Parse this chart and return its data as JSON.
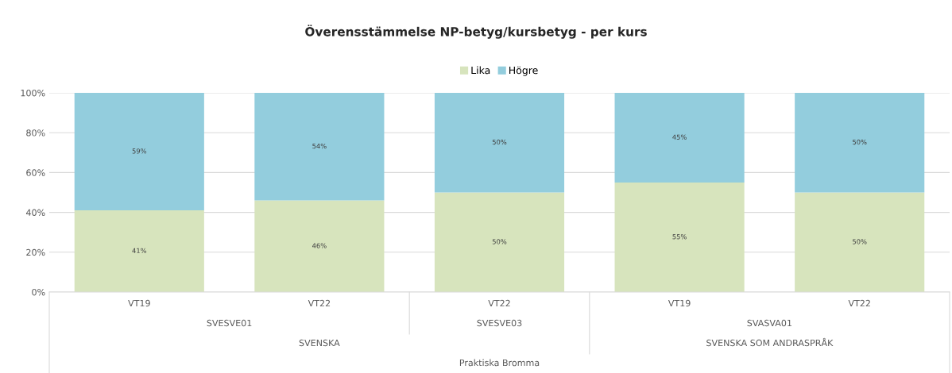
{
  "chart_data": {
    "type": "bar",
    "stacked": true,
    "title": "Överensstämmelse NP-betyg/kursbetyg - per kurs",
    "categories": [
      "VT19",
      "VT22",
      "VT22",
      "VT19",
      "VT22"
    ],
    "series": [
      {
        "name": "Lika",
        "color": "#d7e4bd",
        "values": [
          41,
          46,
          50,
          55,
          50
        ],
        "value_labels": [
          "41%",
          "46%",
          "50%",
          "55%",
          "50%"
        ]
      },
      {
        "name": "Högre",
        "color": "#93cddd",
        "values": [
          59,
          54,
          50,
          45,
          50
        ],
        "value_labels": [
          "59%",
          "54%",
          "50%",
          "45%",
          "50%"
        ]
      }
    ],
    "ylim": [
      0,
      100
    ],
    "yticks": [
      {
        "value": 0,
        "label": "0%"
      },
      {
        "value": 20,
        "label": "20%"
      },
      {
        "value": 40,
        "label": "40%"
      },
      {
        "value": 60,
        "label": "60%"
      },
      {
        "value": 80,
        "label": "80%"
      },
      {
        "value": 100,
        "label": "100%"
      }
    ],
    "grid": "y",
    "legend": "top",
    "annotations": [
      "SVESVE01",
      "SVESVE03",
      "SVASVA01",
      "SVENSKA",
      "SVENSKA SOM ANDRASPRÅK",
      "Praktiska Bromma"
    ]
  }
}
